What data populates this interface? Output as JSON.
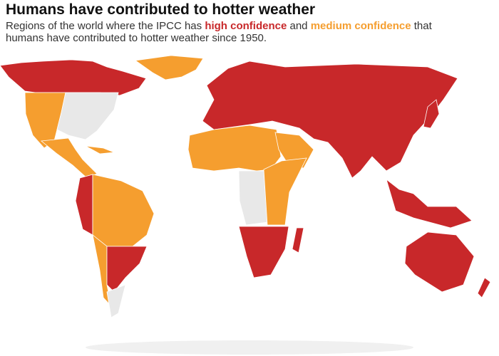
{
  "header": {
    "title": "Humans have contributed to hotter weather",
    "subtitle": [
      "Regions of the world where the IPCC has ",
      "high confidence",
      " and ",
      "medium confidence",
      " that humans have contributed to hotter weather since 1950."
    ]
  }
}
